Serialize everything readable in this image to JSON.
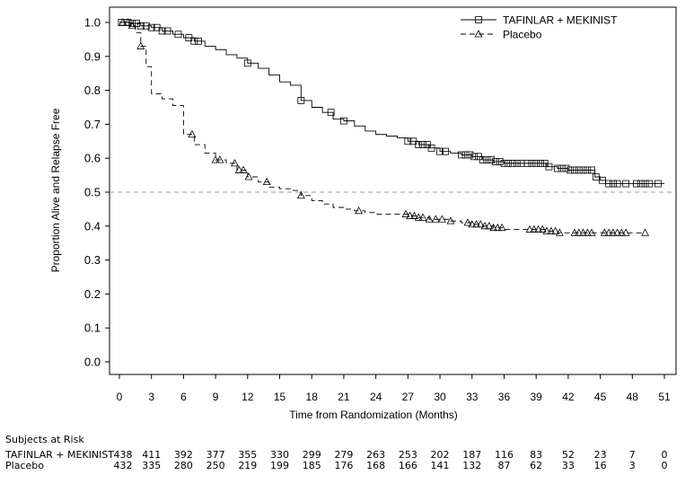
{
  "chart_data": {
    "type": "line",
    "xlabel": "Time from Randomization (Months)",
    "ylabel": "Proportion Alive and Relapse Free",
    "xlim": [
      0,
      51
    ],
    "ylim": [
      0.0,
      1.0
    ],
    "x_ticks": [
      0,
      3,
      6,
      9,
      12,
      15,
      18,
      21,
      24,
      27,
      30,
      33,
      36,
      39,
      42,
      45,
      48,
      51
    ],
    "y_ticks": [
      0.0,
      0.1,
      0.2,
      0.3,
      0.4,
      0.5,
      0.6,
      0.7,
      0.8,
      0.9,
      1.0
    ],
    "y_tick_labels": [
      "0.0",
      "0.1",
      "0.2",
      "0.3",
      "0.4",
      "0.5",
      "0.6",
      "0.7",
      "0.8",
      "0.9",
      "1.0"
    ],
    "reference_line": {
      "y": 0.5,
      "style": "dashed"
    },
    "legend_position": "top-right",
    "series": [
      {
        "name": "TAFINLAR + MEKINIST",
        "line_style": "solid",
        "marker": "square",
        "points": [
          [
            0,
            1.0
          ],
          [
            1,
            0.997
          ],
          [
            2,
            0.99
          ],
          [
            3,
            0.985
          ],
          [
            4,
            0.975
          ],
          [
            5,
            0.965
          ],
          [
            6,
            0.955
          ],
          [
            7,
            0.945
          ],
          [
            8,
            0.93
          ],
          [
            9,
            0.92
          ],
          [
            10,
            0.905
          ],
          [
            11,
            0.895
          ],
          [
            12,
            0.88
          ],
          [
            13,
            0.865
          ],
          [
            14,
            0.845
          ],
          [
            15,
            0.825
          ],
          [
            16,
            0.815
          ],
          [
            17,
            0.77
          ],
          [
            18,
            0.75
          ],
          [
            19,
            0.735
          ],
          [
            20,
            0.715
          ],
          [
            21,
            0.71
          ],
          [
            22,
            0.695
          ],
          [
            23,
            0.68
          ],
          [
            24,
            0.67
          ],
          [
            25,
            0.665
          ],
          [
            26,
            0.66
          ],
          [
            27,
            0.65
          ],
          [
            28,
            0.64
          ],
          [
            29,
            0.63
          ],
          [
            30,
            0.62
          ],
          [
            31,
            0.615
          ],
          [
            32,
            0.61
          ],
          [
            33,
            0.605
          ],
          [
            34,
            0.595
          ],
          [
            35,
            0.59
          ],
          [
            36,
            0.585
          ],
          [
            37,
            0.585
          ],
          [
            38,
            0.585
          ],
          [
            39,
            0.585
          ],
          [
            40,
            0.575
          ],
          [
            41,
            0.57
          ],
          [
            42,
            0.565
          ],
          [
            43,
            0.565
          ],
          [
            44,
            0.565
          ],
          [
            44.5,
            0.545
          ],
          [
            45,
            0.535
          ],
          [
            45.5,
            0.525
          ],
          [
            46,
            0.525
          ],
          [
            47,
            0.525
          ],
          [
            48,
            0.525
          ],
          [
            49,
            0.525
          ],
          [
            50,
            0.525
          ],
          [
            51,
            0.525
          ]
        ],
        "censor_x": [
          0.2,
          0.8,
          1.2,
          1.6,
          2.0,
          2.5,
          3.0,
          3.5,
          4.0,
          4.5,
          5.5,
          6.5,
          7.0,
          7.4,
          12,
          17,
          19.8,
          21,
          27,
          27.5,
          28,
          28.4,
          28.8,
          29.2,
          30,
          30.5,
          32,
          32.4,
          32.8,
          33.2,
          33.6,
          34.0,
          34.4,
          34.8,
          35.2,
          35.6,
          36.0,
          36.4,
          36.8,
          37.2,
          37.6,
          38.2,
          38.6,
          39.0,
          39.4,
          39.8,
          40.2,
          41,
          41.4,
          41.8,
          42.2,
          42.6,
          43,
          43.4,
          43.8,
          44.2,
          44.6,
          45.2,
          45.8,
          46.2,
          46.6,
          47.4,
          48.4,
          48.8,
          49.2,
          49.6,
          50.4
        ]
      },
      {
        "name": "Placebo",
        "line_style": "dashed",
        "marker": "triangle",
        "points": [
          [
            0,
            1.0
          ],
          [
            1,
            0.99
          ],
          [
            1.5,
            0.97
          ],
          [
            2,
            0.93
          ],
          [
            2.5,
            0.87
          ],
          [
            3,
            0.79
          ],
          [
            4,
            0.775
          ],
          [
            5,
            0.755
          ],
          [
            6,
            0.67
          ],
          [
            7,
            0.64
          ],
          [
            8,
            0.615
          ],
          [
            9,
            0.595
          ],
          [
            10,
            0.585
          ],
          [
            11,
            0.565
          ],
          [
            12,
            0.545
          ],
          [
            13,
            0.53
          ],
          [
            14,
            0.515
          ],
          [
            15,
            0.51
          ],
          [
            16,
            0.505
          ],
          [
            17,
            0.49
          ],
          [
            18,
            0.475
          ],
          [
            19,
            0.465
          ],
          [
            20,
            0.455
          ],
          [
            21,
            0.45
          ],
          [
            22,
            0.445
          ],
          [
            23,
            0.44
          ],
          [
            24,
            0.435
          ],
          [
            25,
            0.435
          ],
          [
            26,
            0.435
          ],
          [
            27,
            0.43
          ],
          [
            28,
            0.425
          ],
          [
            29,
            0.42
          ],
          [
            30,
            0.42
          ],
          [
            31,
            0.415
          ],
          [
            32,
            0.41
          ],
          [
            33,
            0.405
          ],
          [
            34,
            0.4
          ],
          [
            35,
            0.395
          ],
          [
            36,
            0.39
          ],
          [
            37,
            0.39
          ],
          [
            38,
            0.39
          ],
          [
            39,
            0.39
          ],
          [
            40,
            0.385
          ],
          [
            41,
            0.38
          ],
          [
            42,
            0.38
          ],
          [
            43,
            0.38
          ],
          [
            44,
            0.38
          ],
          [
            45,
            0.38
          ],
          [
            46,
            0.38
          ],
          [
            47,
            0.38
          ],
          [
            49,
            0.38
          ]
        ],
        "censor_x": [
          0.3,
          0.8,
          1.2,
          2.0,
          6.8,
          9.0,
          9.4,
          10.8,
          11.2,
          11.6,
          12.1,
          13.8,
          17.0,
          22.4,
          26.8,
          27.2,
          27.6,
          28.0,
          28.4,
          29.0,
          29.6,
          30.2,
          31.0,
          32.6,
          33.0,
          33.4,
          33.8,
          34.2,
          34.6,
          35.0,
          35.4,
          35.8,
          38.4,
          38.8,
          39.2,
          39.6,
          40.0,
          40.4,
          40.8,
          41.2,
          42.6,
          43.0,
          43.4,
          43.8,
          44.2,
          45.4,
          45.8,
          46.2,
          46.6,
          47.0,
          47.4,
          49.2
        ]
      }
    ]
  },
  "risk_table": {
    "title": "Subjects at Risk",
    "rows": [
      {
        "label": "TAFINLAR + MEKINIST",
        "values": [
          "438",
          "411",
          "392",
          "377",
          "355",
          "330",
          "299",
          "279",
          "263",
          "253",
          "202",
          "187",
          "116",
          "83",
          "52",
          "23",
          "7",
          "0"
        ]
      },
      {
        "label": "Placebo",
        "values": [
          "432",
          "335",
          "280",
          "250",
          "219",
          "199",
          "185",
          "176",
          "168",
          "166",
          "141",
          "132",
          "87",
          "62",
          "33",
          "16",
          "3",
          "0"
        ]
      }
    ]
  }
}
